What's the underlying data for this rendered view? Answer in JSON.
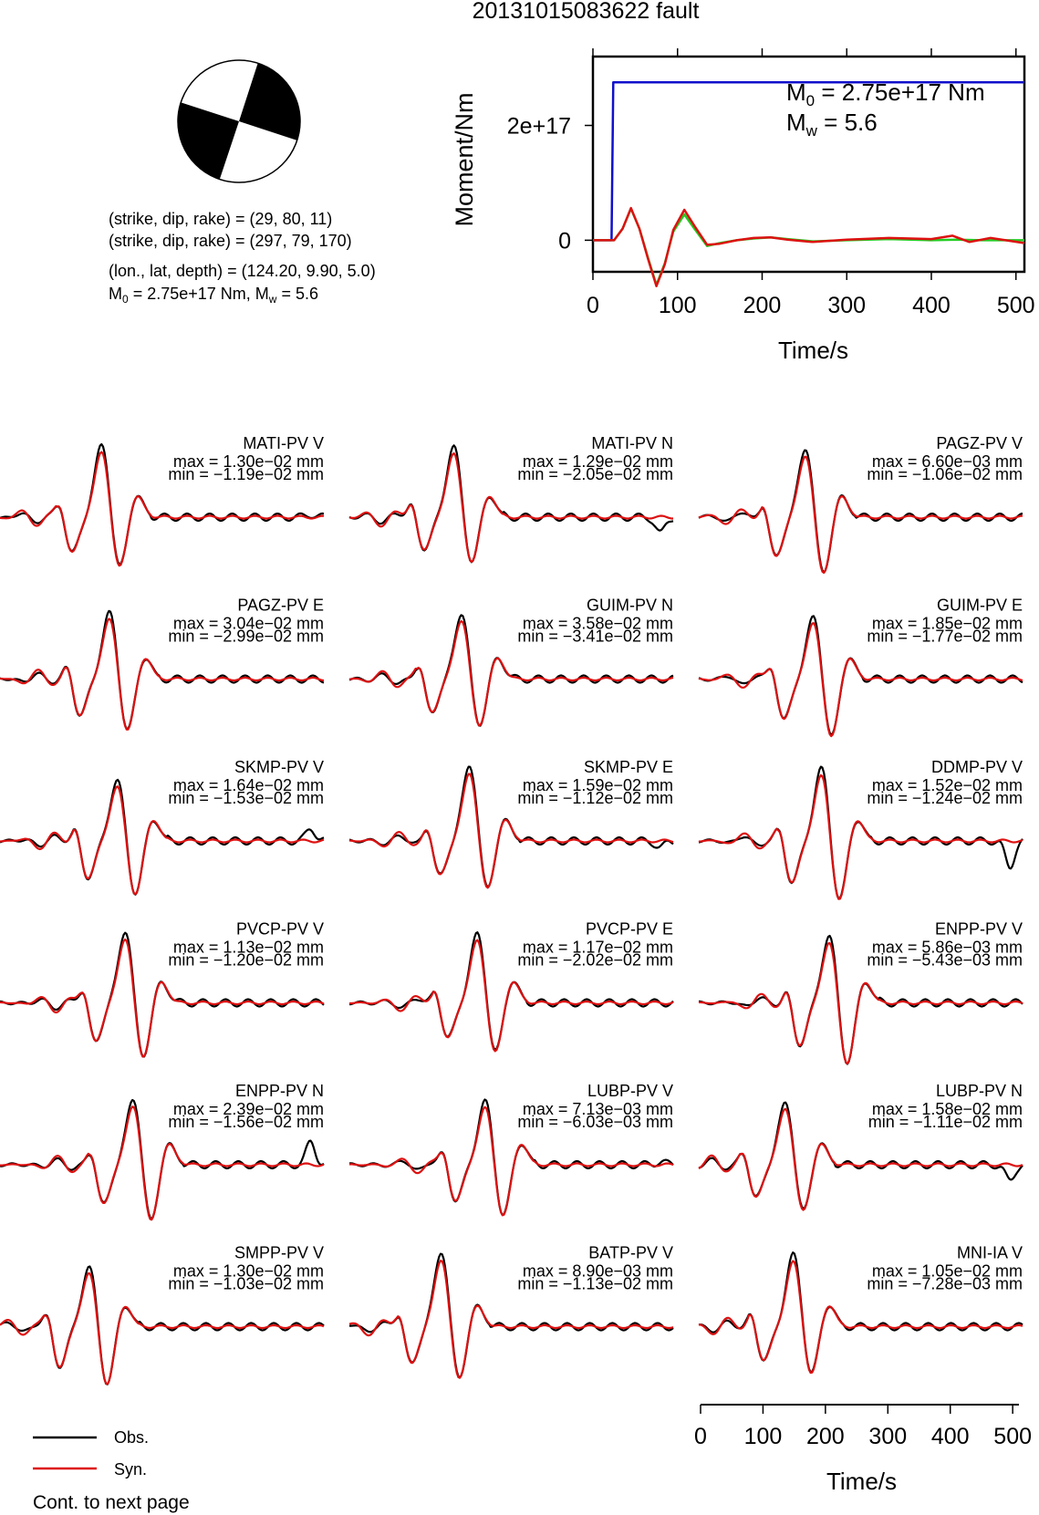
{
  "title": "20131015083622 fault",
  "event": {
    "plane1": "(strike, dip, rake) = (29, 80, 11)",
    "plane2": "(strike, dip, rake) = (297, 79, 170)",
    "location": "(lon., lat, depth) = (124.20, 9.90, 5.0)",
    "moment_prefix": "M",
    "moment_sub": "0",
    "moment_value": " = 2.75e+17 Nm, M",
    "mw_sub": "w",
    "mw_value": " = 5.6"
  },
  "colors": {
    "observed": "#000000",
    "synthetic": "#dd1111",
    "cumulative_moment": "#1010cc",
    "source_time_function": "#22cc22"
  },
  "chart_data": [
    {
      "type": "line",
      "name": "moment-rate",
      "ylabel": "Moment/Nm",
      "xlabel": "Time/s",
      "xlim": [
        0,
        510
      ],
      "ylim": [
        -5.5e+16,
        3.2e+17
      ],
      "xticks": [
        "0",
        "100",
        "200",
        "300",
        "400",
        "500"
      ],
      "yticks": [
        {
          "value": 0,
          "label": "0"
        },
        {
          "value": 2e+17,
          "label": "2e+17"
        }
      ],
      "annotation": {
        "m0_prefix": "M",
        "m0_sub": "0",
        "m0_value": " = 2.75e+17 Nm",
        "mw_prefix": "M",
        "mw_sub": "w",
        "mw_value": " = 5.6"
      },
      "series": [
        {
          "color_key": "cumulative_moment",
          "x": [
            0,
            22,
            24,
            30,
            510
          ],
          "y": [
            0,
            0,
            2.75e+17,
            2.75e+17,
            2.75e+17
          ]
        },
        {
          "color_key": "source_time_function",
          "x": [
            0,
            25,
            35,
            45,
            55,
            65,
            75,
            85,
            95,
            108,
            120,
            135,
            150,
            170,
            190,
            210,
            230,
            260,
            300,
            350,
            400,
            430,
            460,
            510
          ],
          "y": [
            0,
            0,
            2e+16,
            5.5e+16,
            2e+16,
            -3e+16,
            -7.8e+16,
            -4e+16,
            1.5e+16,
            4.5e+16,
            2e+16,
            -1e+16,
            -5000000000000000.0,
            0,
            3000000000000000.0,
            5000000000000000.0,
            2000000000000000.0,
            -2000000000000000.0,
            0,
            2000000000000000.0,
            0,
            1000000000000000.0,
            0,
            0
          ]
        },
        {
          "color_key": "synthetic",
          "x": [
            0,
            25,
            35,
            45,
            55,
            65,
            75,
            85,
            95,
            108,
            120,
            135,
            150,
            170,
            190,
            210,
            230,
            260,
            300,
            350,
            400,
            425,
            445,
            470,
            510
          ],
          "y": [
            0,
            0,
            2e+16,
            5.6e+16,
            2e+16,
            -3.2e+16,
            -8e+16,
            -4.2e+16,
            1.8e+16,
            5.3e+16,
            2.5e+16,
            -8000000000000000.0,
            -6000000000000000.0,
            0,
            4000000000000000.0,
            5000000000000000.0,
            1000000000000000.0,
            -3000000000000000.0,
            1000000000000000.0,
            4000000000000000.0,
            2000000000000000.0,
            8000000000000000.0,
            -3000000000000000.0,
            4000000000000000.0,
            -5000000000000000.0
          ]
        }
      ]
    },
    {
      "type": "line",
      "name": "waveform-time-axis",
      "xlabel": "Time/s",
      "xlim": [
        0,
        510
      ],
      "xticks": [
        "0",
        "100",
        "200",
        "300",
        "400",
        "500"
      ]
    }
  ],
  "waveforms": [
    {
      "station": "MATI-PV V",
      "max": "max = 1.30e−02 mm",
      "min": "min = −1.19e−02 mm"
    },
    {
      "station": "MATI-PV N",
      "max": "max = 1.29e−02 mm",
      "min": "min = −2.05e−02 mm"
    },
    {
      "station": "PAGZ-PV V",
      "max": "max = 6.60e−03 mm",
      "min": "min = −1.06e−02 mm"
    },
    {
      "station": "PAGZ-PV E",
      "max": "max = 3.04e−02 mm",
      "min": "min = −2.99e−02 mm"
    },
    {
      "station": "GUIM-PV N",
      "max": "max = 3.58e−02 mm",
      "min": "min = −3.41e−02 mm"
    },
    {
      "station": "GUIM-PV E",
      "max": "max = 1.85e−02 mm",
      "min": "min = −1.77e−02 mm"
    },
    {
      "station": "SKMP-PV V",
      "max": "max = 1.64e−02 mm",
      "min": "min = −1.53e−02 mm"
    },
    {
      "station": "SKMP-PV E",
      "max": "max = 1.59e−02 mm",
      "min": "min = −1.12e−02 mm"
    },
    {
      "station": "DDMP-PV V",
      "max": "max = 1.52e−02 mm",
      "min": "min = −1.24e−02 mm"
    },
    {
      "station": "PVCP-PV V",
      "max": "max = 1.13e−02 mm",
      "min": "min = −1.20e−02 mm"
    },
    {
      "station": "PVCP-PV E",
      "max": "max = 1.17e−02 mm",
      "min": "min = −2.02e−02 mm"
    },
    {
      "station": "ENPP-PV V",
      "max": "max = 5.86e−03 mm",
      "min": "min = −5.43e−03 mm"
    },
    {
      "station": "ENPP-PV N",
      "max": "max = 2.39e−02 mm",
      "min": "min = −1.56e−02 mm"
    },
    {
      "station": "LUBP-PV V",
      "max": "max = 7.13e−03 mm",
      "min": "min = −6.03e−03 mm"
    },
    {
      "station": "LUBP-PV N",
      "max": "max = 1.58e−02 mm",
      "min": "min = −1.11e−02 mm"
    },
    {
      "station": "SMPP-PV V",
      "max": "max = 1.30e−02 mm",
      "min": "min = −1.03e−02 mm"
    },
    {
      "station": "BATP-PV V",
      "max": "max = 8.90e−03 mm",
      "min": "min = −1.13e−02 mm"
    },
    {
      "station": "MNI-IA V",
      "max": "max = 1.05e−02 mm",
      "min": "min = −7.28e−03 mm"
    }
  ],
  "legend": {
    "observed": "Obs.",
    "synthetic": "Syn."
  },
  "footer": "Cont. to next page"
}
